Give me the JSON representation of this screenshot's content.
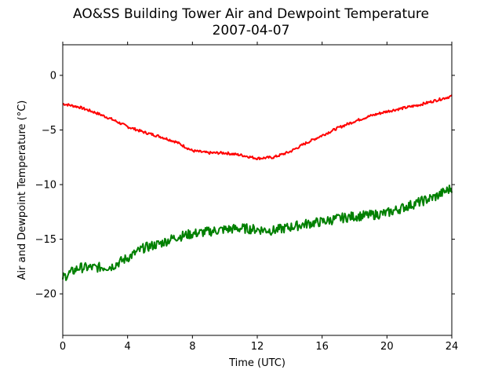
{
  "chart_data": {
    "type": "line",
    "title": "AO&SS Building Tower Air and Dewpoint Temperature",
    "subtitle": "2007-04-07",
    "xlabel": "Time (UTC)",
    "ylabel": "Air and Dewpoint Temperature (°C)",
    "xlim": [
      0,
      24
    ],
    "ylim": [
      -23.8,
      2.8
    ],
    "xticks": [
      0,
      4,
      8,
      12,
      16,
      20,
      24
    ],
    "yticks": [
      0,
      -5,
      -10,
      -15,
      -20
    ],
    "grid": false,
    "legend": "none",
    "series": [
      {
        "color": "#ff0000",
        "x": [
          0,
          1,
          2,
          3,
          4,
          5,
          6,
          7,
          8,
          9,
          10,
          11,
          12,
          13,
          14,
          15,
          16,
          17,
          18,
          19,
          20,
          21,
          22,
          23,
          24
        ],
        "values": [
          -2.6,
          -2.9,
          -3.4,
          -4.0,
          -4.7,
          -5.2,
          -5.6,
          -6.1,
          -6.9,
          -7.1,
          -7.1,
          -7.3,
          -7.6,
          -7.5,
          -7.0,
          -6.2,
          -5.5,
          -4.8,
          -4.2,
          -3.7,
          -3.3,
          -3.0,
          -2.7,
          -2.3,
          -1.9
        ]
      },
      {
        "color": "#008000",
        "x": [
          0,
          1,
          2,
          3,
          4,
          5,
          6,
          7,
          8,
          9,
          10,
          11,
          12,
          13,
          14,
          15,
          16,
          17,
          18,
          19,
          20,
          21,
          22,
          23,
          24
        ],
        "values": [
          -18.5,
          -17.6,
          -17.6,
          -17.5,
          -16.7,
          -15.8,
          -15.4,
          -14.8,
          -14.5,
          -14.3,
          -14.1,
          -14.0,
          -14.1,
          -14.2,
          -13.9,
          -13.6,
          -13.4,
          -13.1,
          -12.9,
          -12.8,
          -12.6,
          -12.1,
          -11.6,
          -11.1,
          -10.3
        ]
      }
    ]
  }
}
